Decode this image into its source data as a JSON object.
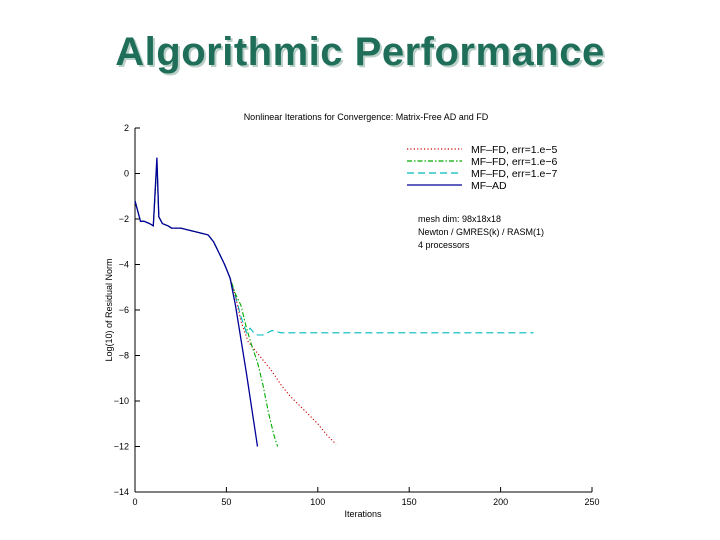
{
  "slide": {
    "title": "Algorithmic Performance"
  },
  "chart_data": {
    "type": "line",
    "title": "Nonlinear Iterations for Convergence: Matrix-Free AD and FD",
    "xlabel": "Iterations",
    "ylabel": "Log(10) of Residual Norm",
    "xlim": [
      0,
      250
    ],
    "ylim": [
      -14,
      2
    ],
    "xticks": [
      0,
      50,
      100,
      150,
      200,
      250
    ],
    "yticks": [
      2,
      0,
      -2,
      -4,
      -6,
      -8,
      -10,
      -12,
      -14
    ],
    "ytick_labels": [
      "2",
      "0",
      "−2",
      "−4",
      "−6",
      "−8",
      "−10",
      "−12",
      "−14"
    ],
    "grid": false,
    "legend": "top-right",
    "annotations": [
      "mesh dim: 98x18x18",
      "Newton / GMRES(k) / RASM(1)",
      "4 processors"
    ],
    "colors": {
      "fd5": "#cc0000",
      "fd6": "#00aa00",
      "fd7": "#00bbbb",
      "ad": "#000099"
    },
    "series": [
      {
        "key": "fd5",
        "name": "MF–FD, err=1.e−5",
        "style": "dotted",
        "x": [
          0,
          1,
          3,
          5,
          8,
          10,
          12,
          13,
          15,
          18,
          20,
          25,
          30,
          35,
          40,
          43,
          46,
          49,
          52,
          55,
          58,
          62,
          66,
          70,
          75,
          80,
          85,
          90,
          95,
          100,
          105,
          110
        ],
        "y": [
          -1.2,
          -1.5,
          -2.1,
          -2.1,
          -2.2,
          -2.3,
          0.5,
          -1.9,
          -2.2,
          -2.3,
          -2.4,
          -2.4,
          -2.5,
          -2.6,
          -2.7,
          -3.0,
          -3.5,
          -4.0,
          -4.6,
          -5.4,
          -6.5,
          -7.4,
          -7.8,
          -8.2,
          -8.7,
          -9.3,
          -9.8,
          -10.2,
          -10.6,
          -11.0,
          -11.5,
          -11.9
        ]
      },
      {
        "key": "fd6",
        "name": "MF–FD, err=1.e−6",
        "style": "dashdot",
        "x": [
          0,
          1,
          3,
          5,
          8,
          10,
          12,
          13,
          15,
          18,
          20,
          25,
          30,
          35,
          40,
          43,
          46,
          49,
          52,
          55,
          58,
          61,
          64,
          67,
          70,
          73,
          76,
          78
        ],
        "y": [
          -1.2,
          -1.5,
          -2.1,
          -2.1,
          -2.2,
          -2.3,
          0.5,
          -1.9,
          -2.2,
          -2.3,
          -2.4,
          -2.4,
          -2.5,
          -2.6,
          -2.7,
          -3.0,
          -3.5,
          -4.0,
          -4.6,
          -5.3,
          -5.8,
          -6.8,
          -7.6,
          -8.3,
          -9.3,
          -10.5,
          -11.5,
          -12.0
        ]
      },
      {
        "key": "fd7",
        "name": "MF–FD, err=1.e−7",
        "style": "dashed",
        "x": [
          0,
          1,
          3,
          5,
          8,
          10,
          12,
          13,
          15,
          18,
          20,
          25,
          30,
          35,
          40,
          43,
          46,
          49,
          52,
          55,
          58,
          61,
          63,
          65,
          67,
          70,
          75,
          80,
          100,
          150,
          200,
          218
        ],
        "y": [
          -1.2,
          -1.5,
          -2.1,
          -2.1,
          -2.2,
          -2.3,
          0.5,
          -1.9,
          -2.2,
          -2.3,
          -2.4,
          -2.4,
          -2.5,
          -2.6,
          -2.7,
          -3.0,
          -3.5,
          -4.0,
          -4.6,
          -5.4,
          -6.3,
          -7.0,
          -6.8,
          -7.0,
          -7.1,
          -7.1,
          -6.9,
          -7.0,
          -7.0,
          -7.0,
          -7.0,
          -7.0
        ]
      },
      {
        "key": "ad",
        "name": "MF–AD",
        "style": "solid",
        "x": [
          0,
          1,
          3,
          5,
          8,
          10,
          12,
          13,
          15,
          18,
          20,
          25,
          30,
          35,
          40,
          43,
          46,
          49,
          52,
          55,
          58,
          61,
          64,
          67
        ],
        "y": [
          -1.2,
          -1.5,
          -2.1,
          -2.1,
          -2.2,
          -2.3,
          0.7,
          -1.9,
          -2.2,
          -2.3,
          -2.4,
          -2.4,
          -2.5,
          -2.6,
          -2.7,
          -3.0,
          -3.5,
          -4.0,
          -4.6,
          -5.8,
          -7.3,
          -8.8,
          -10.4,
          -12.0
        ]
      }
    ]
  }
}
